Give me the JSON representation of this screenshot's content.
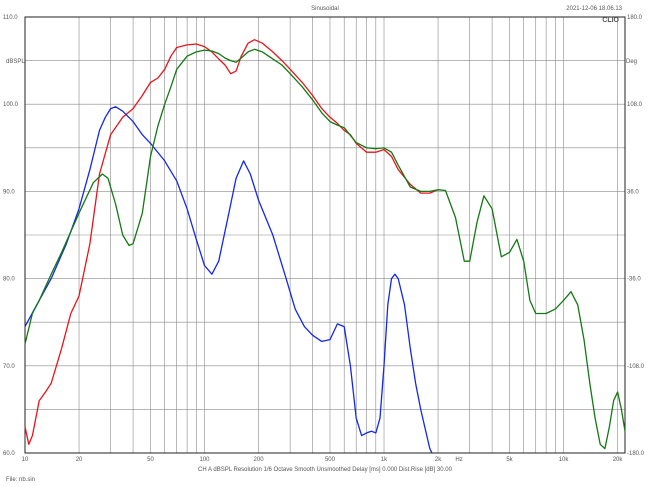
{
  "header": {
    "title": "Sinusoidal",
    "datetime": "2021-12-06 18.06.13",
    "brand": "CLIO"
  },
  "footer": {
    "info": "CH A   dBSPL   Resolution 1/6 Octave   Smooth Unsmoothed   Delay [ms] 0.000   Dist.Rise [dB] 30.00",
    "file": "File: nb.sin"
  },
  "chart_data": {
    "type": "line",
    "x_scale": "log",
    "xlim": [
      10,
      22000
    ],
    "ylim": [
      60,
      110
    ],
    "right_ylim": [
      180,
      -180
    ],
    "y_unit_label": "dBSPL",
    "right_unit_label": "Deg",
    "x_unit_label": "Hz",
    "x_ticks": [
      {
        "v": 10,
        "label": "10"
      },
      {
        "v": 20,
        "label": "20"
      },
      {
        "v": 50,
        "label": "50"
      },
      {
        "v": 100,
        "label": "100"
      },
      {
        "v": 200,
        "label": "200"
      },
      {
        "v": 500,
        "label": "500"
      },
      {
        "v": 1000,
        "label": "1k"
      },
      {
        "v": 2000,
        "label": "2k"
      },
      {
        "v": 5000,
        "label": "5k"
      },
      {
        "v": 10000,
        "label": "10k"
      },
      {
        "v": 20000,
        "label": "20k"
      }
    ],
    "y_ticks": [
      {
        "v": 110,
        "label": "110.0"
      },
      {
        "v": 100,
        "label": "100.0"
      },
      {
        "v": 90,
        "label": "90.0"
      },
      {
        "v": 80,
        "label": "80.0"
      },
      {
        "v": 70,
        "label": "70.0"
      },
      {
        "v": 60,
        "label": "60.0"
      }
    ],
    "right_ticks": [
      {
        "v": 180,
        "label": "180.0"
      },
      {
        "v": 108,
        "label": "108.0"
      },
      {
        "v": 36,
        "label": "36.0"
      },
      {
        "v": -36,
        "label": "-36.0"
      },
      {
        "v": -108,
        "label": "-108.0"
      },
      {
        "v": -180,
        "label": "-180.0"
      }
    ],
    "grid": true,
    "series": [
      {
        "color": "#e8141c",
        "points": [
          [
            10,
            63
          ],
          [
            10.5,
            61
          ],
          [
            11,
            62
          ],
          [
            12,
            66
          ],
          [
            13,
            67
          ],
          [
            14,
            68
          ],
          [
            16,
            72
          ],
          [
            18,
            76
          ],
          [
            20,
            78
          ],
          [
            23,
            84
          ],
          [
            26,
            92
          ],
          [
            30,
            96.5
          ],
          [
            35,
            98.5
          ],
          [
            40,
            99.5
          ],
          [
            45,
            101
          ],
          [
            50,
            102.5
          ],
          [
            55,
            103
          ],
          [
            60,
            104
          ],
          [
            65,
            105.5
          ],
          [
            70,
            106.5
          ],
          [
            80,
            106.8
          ],
          [
            90,
            106.9
          ],
          [
            100,
            106.6
          ],
          [
            110,
            106
          ],
          [
            120,
            105.2
          ],
          [
            130,
            104.5
          ],
          [
            140,
            103.5
          ],
          [
            150,
            103.8
          ],
          [
            160,
            105.5
          ],
          [
            175,
            107
          ],
          [
            190,
            107.4
          ],
          [
            210,
            107
          ],
          [
            240,
            106
          ],
          [
            270,
            105
          ],
          [
            300,
            104
          ],
          [
            350,
            102.5
          ],
          [
            400,
            101
          ],
          [
            450,
            99.5
          ],
          [
            500,
            98.5
          ],
          [
            550,
            97.8
          ],
          [
            600,
            97
          ],
          [
            650,
            96.5
          ],
          [
            700,
            95.5
          ],
          [
            800,
            94.5
          ],
          [
            900,
            94.5
          ],
          [
            1000,
            94.8
          ],
          [
            1100,
            94
          ],
          [
            1200,
            92.5
          ],
          [
            1400,
            90.8
          ],
          [
            1600,
            89.8
          ],
          [
            1800,
            89.8
          ],
          [
            2000,
            90.2
          ]
        ]
      },
      {
        "color": "#1428e8",
        "points": [
          [
            10,
            74.5
          ],
          [
            12,
            77.5
          ],
          [
            14,
            80
          ],
          [
            17,
            84
          ],
          [
            20,
            88
          ],
          [
            23,
            92.5
          ],
          [
            26,
            97
          ],
          [
            28,
            98.5
          ],
          [
            30,
            99.5
          ],
          [
            32,
            99.7
          ],
          [
            35,
            99.2
          ],
          [
            40,
            98
          ],
          [
            45,
            96.5
          ],
          [
            50,
            95.5
          ],
          [
            60,
            93.5
          ],
          [
            70,
            91.2
          ],
          [
            80,
            88
          ],
          [
            90,
            84.5
          ],
          [
            100,
            81.5
          ],
          [
            110,
            80.5
          ],
          [
            120,
            82
          ],
          [
            135,
            87
          ],
          [
            150,
            91.5
          ],
          [
            165,
            93.5
          ],
          [
            180,
            92
          ],
          [
            200,
            89
          ],
          [
            240,
            85
          ],
          [
            280,
            80.5
          ],
          [
            320,
            76.5
          ],
          [
            360,
            74.5
          ],
          [
            400,
            73.5
          ],
          [
            450,
            72.8
          ],
          [
            500,
            73
          ],
          [
            550,
            74.8
          ],
          [
            600,
            74.5
          ],
          [
            650,
            70
          ],
          [
            700,
            64
          ],
          [
            750,
            62
          ],
          [
            800,
            62.3
          ],
          [
            850,
            62.5
          ],
          [
            900,
            62.3
          ],
          [
            950,
            64
          ],
          [
            1000,
            70
          ],
          [
            1050,
            77
          ],
          [
            1100,
            80
          ],
          [
            1150,
            80.5
          ],
          [
            1200,
            80
          ],
          [
            1300,
            77
          ],
          [
            1400,
            72
          ],
          [
            1500,
            68
          ],
          [
            1600,
            65
          ],
          [
            1800,
            60.5
          ],
          [
            1850,
            60
          ]
        ]
      },
      {
        "color": "#147814",
        "points": [
          [
            10,
            72.5
          ],
          [
            11,
            76
          ],
          [
            12,
            77.5
          ],
          [
            14,
            80.5
          ],
          [
            16,
            83
          ],
          [
            20,
            87.5
          ],
          [
            24,
            91
          ],
          [
            27,
            92
          ],
          [
            29,
            91.5
          ],
          [
            32,
            88.5
          ],
          [
            35,
            85
          ],
          [
            38,
            83.8
          ],
          [
            40,
            84
          ],
          [
            45,
            87.5
          ],
          [
            50,
            94
          ],
          [
            55,
            97.5
          ],
          [
            60,
            100
          ],
          [
            65,
            102
          ],
          [
            70,
            104
          ],
          [
            80,
            105.5
          ],
          [
            90,
            106
          ],
          [
            100,
            106.2
          ],
          [
            110,
            106.1
          ],
          [
            120,
            105.8
          ],
          [
            130,
            105.3
          ],
          [
            140,
            105
          ],
          [
            150,
            104.8
          ],
          [
            160,
            105.3
          ],
          [
            175,
            106
          ],
          [
            190,
            106.3
          ],
          [
            210,
            106
          ],
          [
            240,
            105.2
          ],
          [
            270,
            104.5
          ],
          [
            300,
            103.5
          ],
          [
            350,
            102
          ],
          [
            400,
            100.5
          ],
          [
            450,
            99
          ],
          [
            500,
            98
          ],
          [
            550,
            97.6
          ],
          [
            600,
            97.3
          ],
          [
            700,
            95.6
          ],
          [
            800,
            95
          ],
          [
            900,
            94.9
          ],
          [
            1000,
            95
          ],
          [
            1100,
            94.5
          ],
          [
            1200,
            93
          ],
          [
            1400,
            90.5
          ],
          [
            1600,
            90
          ],
          [
            1800,
            90
          ],
          [
            2000,
            90.2
          ],
          [
            2200,
            90.1
          ],
          [
            2500,
            87
          ],
          [
            2800,
            82
          ],
          [
            3000,
            82
          ],
          [
            3300,
            86.5
          ],
          [
            3600,
            89.5
          ],
          [
            4000,
            88
          ],
          [
            4500,
            82.5
          ],
          [
            5000,
            83
          ],
          [
            5500,
            84.5
          ],
          [
            6000,
            82
          ],
          [
            6500,
            77.5
          ],
          [
            7000,
            76
          ],
          [
            8000,
            76
          ],
          [
            9000,
            76.5
          ],
          [
            10000,
            77.5
          ],
          [
            11000,
            78.5
          ],
          [
            12000,
            77
          ],
          [
            13000,
            73
          ],
          [
            14000,
            68
          ],
          [
            15000,
            64
          ],
          [
            16000,
            61
          ],
          [
            17000,
            60.5
          ],
          [
            18000,
            63
          ],
          [
            19000,
            66
          ],
          [
            20000,
            67
          ],
          [
            21000,
            65
          ],
          [
            22000,
            62.5
          ]
        ]
      }
    ]
  }
}
